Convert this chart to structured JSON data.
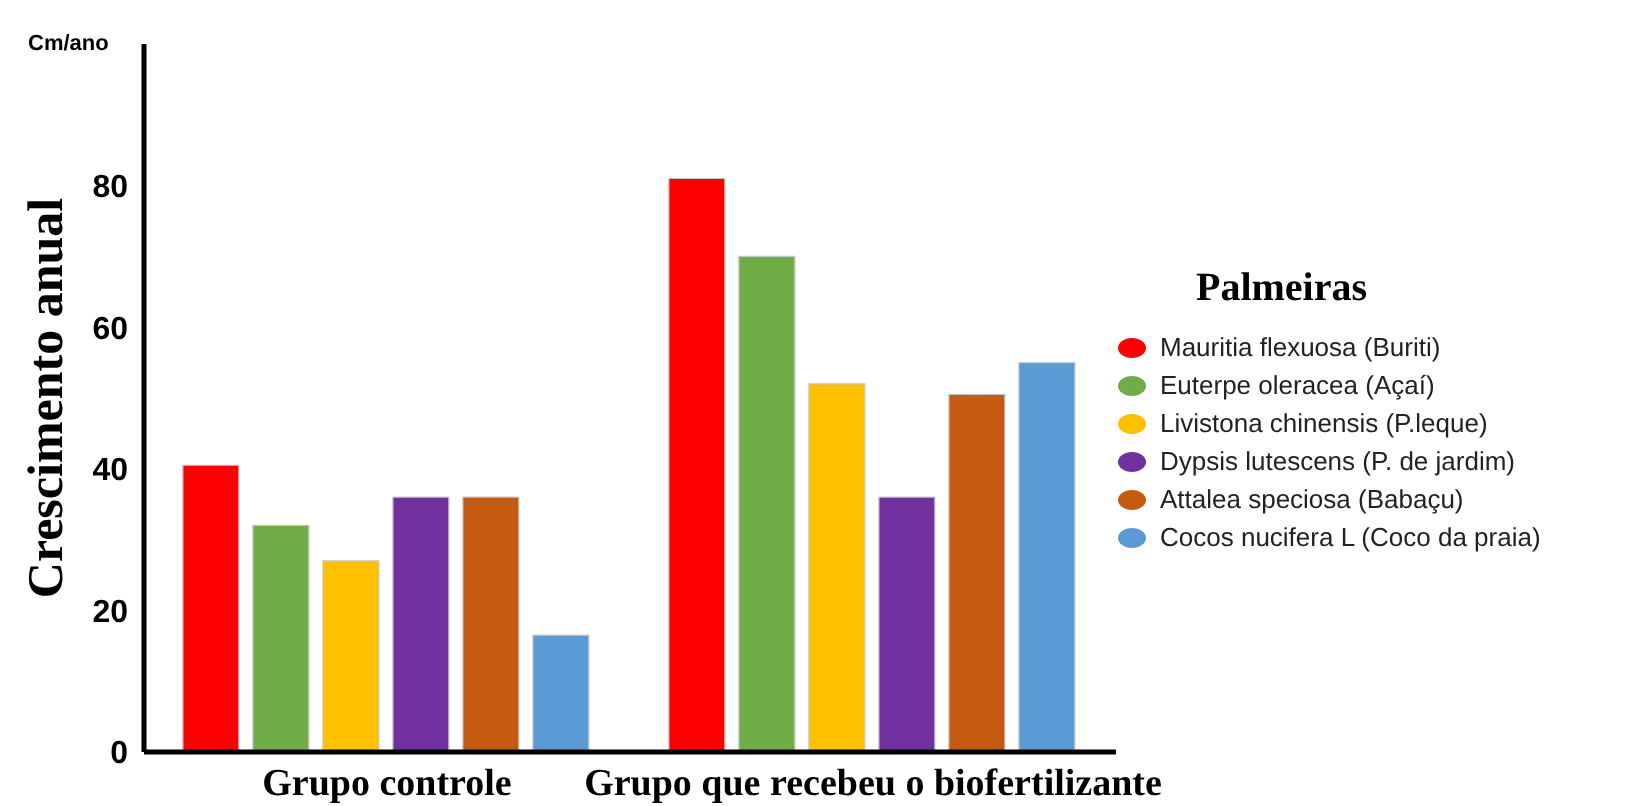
{
  "chart_data": {
    "type": "bar",
    "ylabel": "Crescimento anual",
    "legend_title": "Palmeiras",
    "annotations": [
      "Cm/ano"
    ],
    "categories": [
      "Grupo controle",
      "Grupo que recebeu o biofertilizante"
    ],
    "series": [
      {
        "name": "Mauritia flexuosa (Buriti)",
        "color": "#ff0000",
        "values": [
          40.5,
          81
        ]
      },
      {
        "name": "Euterpe oleracea (Açaí)",
        "color": "#70ad47",
        "values": [
          32,
          70
        ]
      },
      {
        "name": "Livistona chinensis (P.leque)",
        "color": "#ffc000",
        "values": [
          27,
          52
        ]
      },
      {
        "name": "Dypsis lutescens (P. de jardim)",
        "color": "#7030a0",
        "values": [
          36,
          36
        ]
      },
      {
        "name": "Attalea speciosa (Babaçu)",
        "color": "#c55a11",
        "values": [
          36,
          50.5
        ]
      },
      {
        "name": "Cocos nucifera L (Coco da praia)",
        "color": "#5b9bd5",
        "values": [
          16.5,
          55
        ]
      }
    ],
    "ylim": [
      0,
      100
    ],
    "yticks": [
      0,
      20,
      40,
      60,
      80
    ],
    "grid": false,
    "legend": "right"
  }
}
